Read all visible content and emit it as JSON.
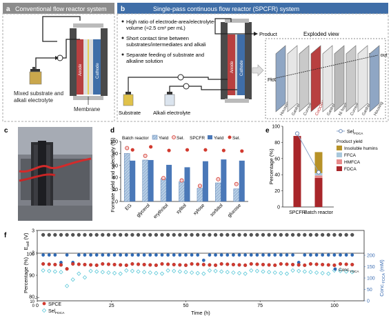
{
  "panels": {
    "a": {
      "letter": "a",
      "header": "Conventional flow reactor system",
      "labels": {
        "mixed1": "Mixed substrate and",
        "mixed2": "alkali electrolyte",
        "membrane": "Membrane",
        "anode": "Anode",
        "cathode": "Cathode"
      }
    },
    "b": {
      "letter": "b",
      "header": "Single-pass continuous flow reactor (SPCFR) system",
      "bullets": [
        [
          "High ratio of electrode-area/electrolyte-",
          "volume (≈2.5 cm² per mL)"
        ],
        [
          "Short contact time between",
          "substrates/intermediates and alkali"
        ],
        [
          "Separate feeding of substrate and",
          "alkaline solution"
        ]
      ],
      "labels": {
        "product": "Product",
        "exploded": "Exploded view",
        "flow_out": "Flow out",
        "flow_in": "Flow in",
        "substrate": "Substrate",
        "alkali": "Alkali electrolyte",
        "anode": "Anode",
        "cathode": "Cathode"
      },
      "exploded_parts": [
        "Housing",
        "Gasket",
        "Current collector",
        "CoOOH/NF",
        "Gasket",
        "Ni foam",
        "Current collector",
        "Gasket",
        "Housing"
      ]
    },
    "c": {
      "letter": "c"
    },
    "d": {
      "letter": "d"
    },
    "e": {
      "letter": "e"
    },
    "f": {
      "letter": "f"
    }
  },
  "chart_data": [
    {
      "id": "d",
      "type": "bar",
      "ylabel": "Formate yield and selectivity (%)",
      "ylim": [
        0,
        100
      ],
      "yticks": [
        0,
        20,
        40,
        60,
        80,
        100
      ],
      "categories": [
        "EG",
        "glycerol",
        "erythritol",
        "xylitol",
        "xylose",
        "sorbitol",
        "glucose"
      ],
      "legend": {
        "group1": "Batch reactor",
        "group2": "SPCFR",
        "yield": "Yield",
        "sel": "Sel."
      },
      "series": [
        {
          "name": "Batch reactor Yield",
          "values": [
            80,
            69,
            38,
            33,
            22,
            31,
            21
          ]
        },
        {
          "name": "SPCFR Yield",
          "values": [
            68,
            69,
            61,
            57,
            67,
            70,
            68
          ]
        },
        {
          "name": "Batch reactor Sel.",
          "values": [
            89,
            76,
            39,
            35,
            26,
            37,
            29
          ]
        },
        {
          "name": "SPCFR Sel.",
          "values": [
            86,
            91,
            85,
            86,
            86,
            85,
            84
          ]
        }
      ],
      "colors": {
        "batch": "#b8cfe6",
        "spcfr": "#4a78b8",
        "batch_sel": "#f6d0d0",
        "spcfr_sel": "#d23a2f"
      }
    },
    {
      "id": "e",
      "type": "bar",
      "ylabel": "Percentage (%)",
      "ylim": [
        0,
        100
      ],
      "yticks": [
        0,
        20,
        40,
        60,
        80,
        100
      ],
      "categories": [
        "SPCFR",
        "Batch reactor"
      ],
      "stack_names": [
        "FDCA",
        "HMFCA",
        "FFCA",
        "Insoluble humins"
      ],
      "stacks": [
        [
          88,
          0,
          0,
          0
        ],
        [
          36,
          3,
          3,
          26
        ]
      ],
      "sel_fdca": [
        91,
        43
      ],
      "legend": {
        "line": "Sel",
        "line_sub": "FDCA",
        "title": "Product yield",
        "items": [
          "Insoluble humins",
          "FFCA",
          "HMFCA",
          "FDCA"
        ]
      },
      "colors": {
        "FDCA": "#a8262a",
        "HMFCA": "#e88b8b",
        "FFCA": "#a9c8dc",
        "Insoluble humins": "#b79228",
        "line": "#8aa4c8"
      }
    },
    {
      "id": "f",
      "type": "scatter",
      "xlabel": "Time (h)",
      "xlim": [
        0,
        110
      ],
      "xticks": [
        0,
        25,
        50,
        75,
        100
      ],
      "top": {
        "ylabel": "E",
        "ylabel_sub": "cell",
        "ylabel_unit": " (V)",
        "ylim": [
          2,
          3
        ],
        "yticks": [
          2,
          3
        ],
        "value": 2.8
      },
      "bottom": {
        "ylabel": "Percentage (%)",
        "ylim_left": [
          80,
          100
        ],
        "yticks_left": [
          80,
          90,
          100
        ],
        "ybreak": [
          "0",
          "10"
        ],
        "ylabel_right": "Conc.",
        "ylabel_right_sub": "FDCA",
        "ylabel_right_unit": " (mM)",
        "ylim_right": [
          0,
          200
        ],
        "yticks_right": [
          0,
          50,
          100,
          150,
          200
        ],
        "series": [
          {
            "name": "SPCE",
            "values_approx": 95,
            "low": [
              [
                10,
                93
              ]
            ]
          },
          {
            "name": "Sel",
            "name_sub": "FDCA",
            "values_approx": 91.5,
            "low": [
              [
                10,
                85
              ],
              [
                12,
                88
              ],
              [
                16,
                89
              ]
            ]
          },
          {
            "name": "Conc.",
            "name_sub": "FDCA",
            "values_approx": 99.5,
            "low": [
              [
                8,
                96
              ],
              [
                12,
                96
              ],
              [
                56,
                97
              ],
              [
                88,
                96
              ]
            ]
          }
        ]
      }
    }
  ]
}
